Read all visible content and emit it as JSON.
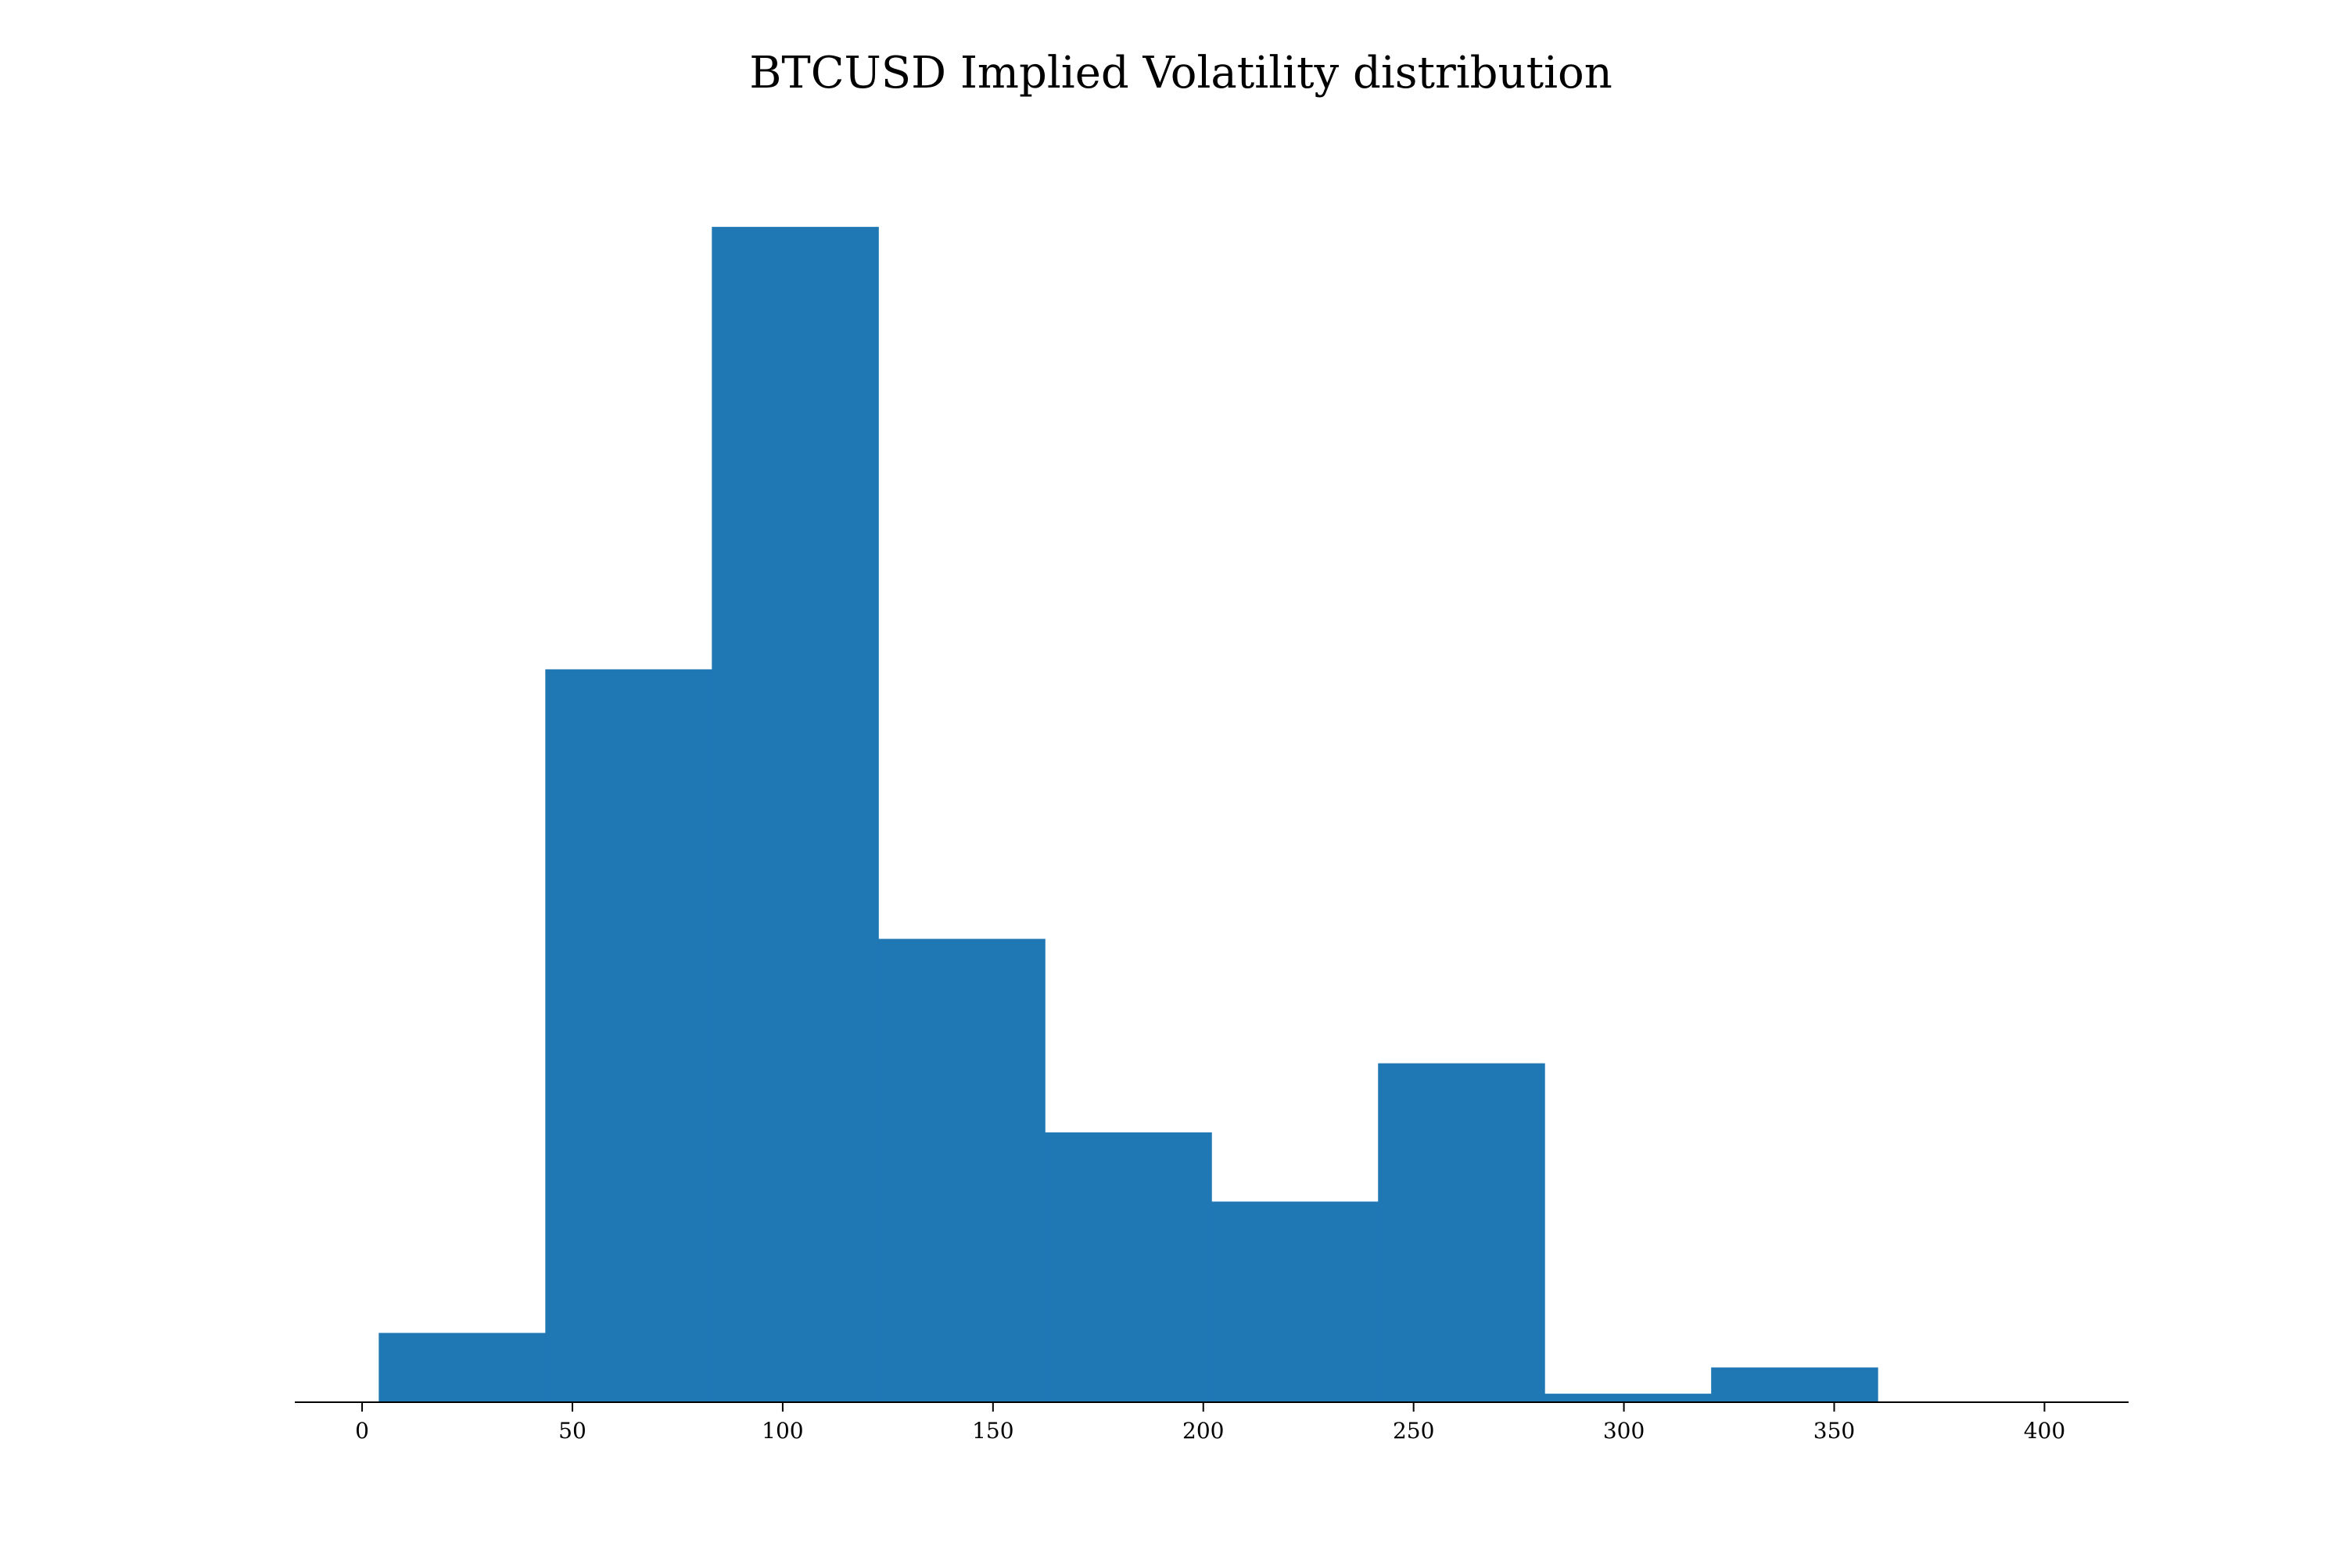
{
  "chart_data": {
    "type": "bar",
    "subtype": "histogram",
    "title": "BTCUSD Implied Volatility distribution",
    "xlabel": "",
    "ylabel": "",
    "xlim": [
      -16,
      420
    ],
    "ylim": [
      0,
      90
    ],
    "y_axis_visible": false,
    "grid": false,
    "bar_color": "#1f77b4",
    "axis_color": "#000000",
    "bins": [
      {
        "start": 4,
        "end": 43.6,
        "count": 5
      },
      {
        "start": 43.6,
        "end": 83.2,
        "count": 53
      },
      {
        "start": 83.2,
        "end": 122.8,
        "count": 85
      },
      {
        "start": 122.8,
        "end": 162.4,
        "count": 33.5
      },
      {
        "start": 162.4,
        "end": 202,
        "count": 19.5
      },
      {
        "start": 202,
        "end": 241.6,
        "count": 14.5
      },
      {
        "start": 241.6,
        "end": 281.2,
        "count": 24.5
      },
      {
        "start": 281.2,
        "end": 320.8,
        "count": 0.6
      },
      {
        "start": 320.8,
        "end": 360.4,
        "count": 2.5
      }
    ],
    "x_ticks": [
      0,
      50,
      100,
      150,
      200,
      250,
      300,
      350,
      400
    ],
    "x_tick_labels": [
      "0",
      "50",
      "100",
      "150",
      "200",
      "250",
      "300",
      "350",
      "400"
    ]
  }
}
